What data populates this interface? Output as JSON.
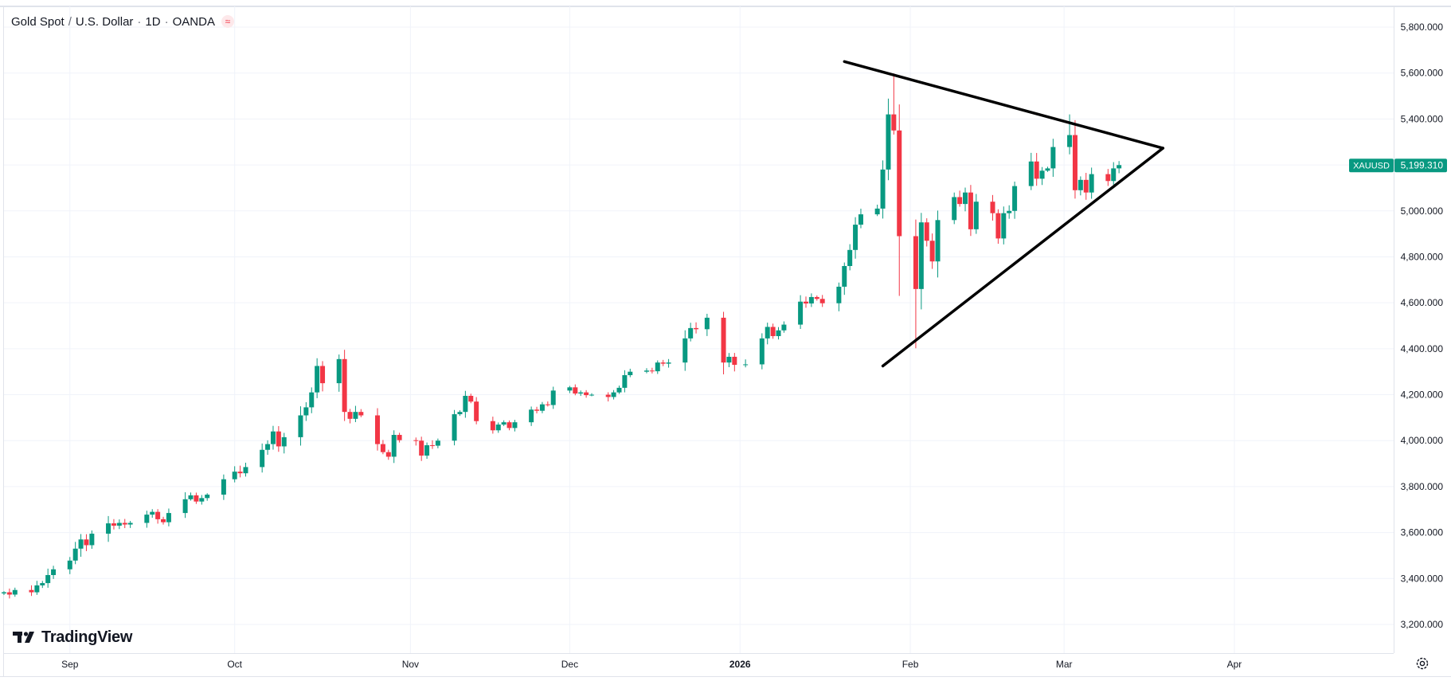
{
  "header": {
    "symbol_name": "Gold Spot",
    "currency": "U.S. Dollar",
    "interval": "1D",
    "source": "OANDA",
    "market_status_icon": "wave-icon"
  },
  "logo": {
    "text": "TradingView",
    "icon": "tradingview-logo-icon"
  },
  "price_label": {
    "symbol": "XAUUSD",
    "value": "5,199.310",
    "price": 5199.31,
    "color": "#089981"
  },
  "settings_icon": "gear-icon",
  "colors": {
    "up": "#089981",
    "down": "#f23645",
    "grid": "#f0f3fa",
    "drawing": "#000000"
  },
  "chart_data": {
    "type": "candlestick",
    "title": "",
    "ylim": [
      3200,
      5800
    ],
    "y_ticks": [
      "5,800.000",
      "5,600.000",
      "5,400.000",
      "5,200.000",
      "5,000.000",
      "4,800.000",
      "4,600.000",
      "4,400.000",
      "4,200.000",
      "4,000.000",
      "3,800.000",
      "3,600.000",
      "3,400.000",
      "3,200.000"
    ],
    "y_tick_values": [
      5800,
      5600,
      5400,
      5200,
      5000,
      4800,
      4600,
      4400,
      4200,
      4000,
      3800,
      3600,
      3400,
      3200
    ],
    "x_range": [
      "2025-08-20",
      "2026-04-30"
    ],
    "x_ticks": [
      {
        "label": "Sep",
        "date": "2025-09-01",
        "bold": false
      },
      {
        "label": "Oct",
        "date": "2025-10-01",
        "bold": false
      },
      {
        "label": "Nov",
        "date": "2025-11-02",
        "bold": false
      },
      {
        "label": "Dec",
        "date": "2025-12-01",
        "bold": false
      },
      {
        "label": "2026",
        "date": "2026-01-01",
        "bold": true
      },
      {
        "label": "Feb",
        "date": "2026-02-01",
        "bold": false
      },
      {
        "label": "Mar",
        "date": "2026-03-01",
        "bold": false
      },
      {
        "label": "Apr",
        "date": "2026-04-01",
        "bold": false
      }
    ],
    "grid": true,
    "closes": [
      [
        "2025-08-20",
        3340
      ],
      [
        "2025-08-21",
        3330
      ],
      [
        "2025-08-22",
        3350
      ],
      [
        "2025-08-25",
        3340
      ],
      [
        "2025-08-26",
        3370
      ],
      [
        "2025-08-27",
        3380
      ],
      [
        "2025-08-28",
        3415
      ],
      [
        "2025-08-29",
        3440
      ],
      [
        "2025-09-01",
        3478
      ],
      [
        "2025-09-02",
        3530
      ],
      [
        "2025-09-03",
        3570
      ],
      [
        "2025-09-04",
        3545
      ],
      [
        "2025-09-05",
        3595
      ],
      [
        "2025-09-08",
        3640
      ],
      [
        "2025-09-09",
        3630
      ],
      [
        "2025-09-10",
        3642
      ],
      [
        "2025-09-11",
        3635
      ],
      [
        "2025-09-12",
        3642
      ],
      [
        "2025-09-15",
        3678
      ],
      [
        "2025-09-16",
        3690
      ],
      [
        "2025-09-17",
        3658
      ],
      [
        "2025-09-18",
        3645
      ],
      [
        "2025-09-19",
        3685
      ],
      [
        "2025-09-22",
        3745
      ],
      [
        "2025-09-23",
        3762
      ],
      [
        "2025-09-24",
        3735
      ],
      [
        "2025-09-25",
        3750
      ],
      [
        "2025-09-26",
        3765
      ],
      [
        "2025-09-29",
        3832
      ],
      [
        "2025-10-01",
        3865
      ],
      [
        "2025-10-02",
        3858
      ],
      [
        "2025-10-03",
        3885
      ],
      [
        "2025-10-06",
        3960
      ],
      [
        "2025-10-07",
        3985
      ],
      [
        "2025-10-08",
        4040
      ],
      [
        "2025-10-09",
        3975
      ],
      [
        "2025-10-10",
        4015
      ],
      [
        "2025-10-13",
        4110
      ],
      [
        "2025-10-14",
        4145
      ],
      [
        "2025-10-15",
        4210
      ],
      [
        "2025-10-16",
        4325
      ],
      [
        "2025-10-17",
        4250
      ],
      [
        "2025-10-20",
        4355
      ],
      [
        "2025-10-21",
        4125
      ],
      [
        "2025-10-22",
        4095
      ],
      [
        "2025-10-23",
        4125
      ],
      [
        "2025-10-24",
        4110
      ],
      [
        "2025-10-27",
        3985
      ],
      [
        "2025-10-28",
        3950
      ],
      [
        "2025-10-29",
        3930
      ],
      [
        "2025-10-30",
        4025
      ],
      [
        "2025-10-31",
        4002
      ],
      [
        "2025-11-03",
        4000
      ],
      [
        "2025-11-04",
        3935
      ],
      [
        "2025-11-05",
        3980
      ],
      [
        "2025-11-06",
        3978
      ],
      [
        "2025-11-07",
        4000
      ],
      [
        "2025-11-10",
        4115
      ],
      [
        "2025-11-11",
        4125
      ],
      [
        "2025-11-12",
        4195
      ],
      [
        "2025-11-13",
        4170
      ],
      [
        "2025-11-14",
        4085
      ],
      [
        "2025-11-17",
        4045
      ],
      [
        "2025-11-18",
        4070
      ],
      [
        "2025-11-19",
        4080
      ],
      [
        "2025-11-20",
        4055
      ],
      [
        "2025-11-21",
        4080
      ],
      [
        "2025-11-24",
        4135
      ],
      [
        "2025-11-25",
        4130
      ],
      [
        "2025-11-26",
        4158
      ],
      [
        "2025-11-27",
        4155
      ],
      [
        "2025-11-28",
        4218
      ],
      [
        "2025-12-01",
        4232
      ],
      [
        "2025-12-02",
        4205
      ],
      [
        "2025-12-03",
        4210
      ],
      [
        "2025-12-04",
        4198
      ],
      [
        "2025-12-05",
        4200
      ],
      [
        "2025-12-08",
        4190
      ],
      [
        "2025-12-09",
        4210
      ],
      [
        "2025-12-10",
        4230
      ],
      [
        "2025-12-11",
        4285
      ],
      [
        "2025-12-12",
        4300
      ],
      [
        "2025-12-15",
        4305
      ],
      [
        "2025-12-16",
        4302
      ],
      [
        "2025-12-17",
        4340
      ],
      [
        "2025-12-18",
        4335
      ],
      [
        "2025-12-19",
        4340
      ],
      [
        "2025-12-22",
        4445
      ],
      [
        "2025-12-23",
        4490
      ],
      [
        "2025-12-24",
        4485
      ],
      [
        "2025-12-26",
        4535
      ],
      [
        "2025-12-29",
        4340
      ],
      [
        "2025-12-30",
        4365
      ],
      [
        "2025-12-31",
        4330
      ],
      [
        "2026-01-02",
        4332
      ],
      [
        "2026-01-05",
        4445
      ],
      [
        "2026-01-06",
        4495
      ],
      [
        "2026-01-07",
        4455
      ],
      [
        "2026-01-08",
        4480
      ],
      [
        "2026-01-09",
        4505
      ],
      [
        "2026-01-12",
        4605
      ],
      [
        "2026-01-13",
        4597
      ],
      [
        "2026-01-14",
        4625
      ],
      [
        "2026-01-15",
        4617
      ],
      [
        "2026-01-16",
        4598
      ],
      [
        "2026-01-19",
        4670
      ],
      [
        "2026-01-20",
        4760
      ],
      [
        "2026-01-21",
        4830
      ],
      [
        "2026-01-22",
        4940
      ],
      [
        "2026-01-23",
        4985
      ],
      [
        "2026-01-26",
        5010
      ],
      [
        "2026-01-27",
        5180
      ],
      [
        "2026-01-28",
        5420
      ],
      [
        "2026-01-29",
        5350
      ],
      [
        "2026-01-30",
        4890
      ],
      [
        "2026-02-02",
        4660
      ],
      [
        "2026-02-03",
        4950
      ],
      [
        "2026-02-04",
        4870
      ],
      [
        "2026-02-05",
        4780
      ],
      [
        "2026-02-06",
        4960
      ],
      [
        "2026-02-09",
        5060
      ],
      [
        "2026-02-10",
        5030
      ],
      [
        "2026-02-11",
        5080
      ],
      [
        "2026-02-12",
        4920
      ],
      [
        "2026-02-13",
        5040
      ],
      [
        "2026-02-16",
        4990
      ],
      [
        "2026-02-17",
        4880
      ],
      [
        "2026-02-18",
        4990
      ],
      [
        "2026-02-19",
        5000
      ],
      [
        "2026-02-20",
        5108
      ],
      [
        "2026-02-23",
        5215
      ],
      [
        "2026-02-24",
        5140
      ],
      [
        "2026-02-25",
        5175
      ],
      [
        "2026-02-26",
        5185
      ],
      [
        "2026-02-27",
        5278
      ],
      [
        "2026-03-02",
        5330
      ],
      [
        "2026-03-03",
        5090
      ],
      [
        "2026-03-04",
        5135
      ],
      [
        "2026-03-05",
        5080
      ],
      [
        "2026-03-06",
        5160
      ],
      [
        "2026-03-09",
        5130
      ],
      [
        "2026-03-10",
        5185
      ],
      [
        "2026-03-11",
        5199.31
      ]
    ],
    "drawing_triangle": {
      "upper_line": [
        [
          "2026-01-20",
          5650
        ],
        [
          "2026-03-19",
          5273
        ]
      ],
      "lower_line": [
        [
          "2026-01-27",
          4325
        ],
        [
          "2026-03-19",
          5273
        ]
      ]
    }
  }
}
